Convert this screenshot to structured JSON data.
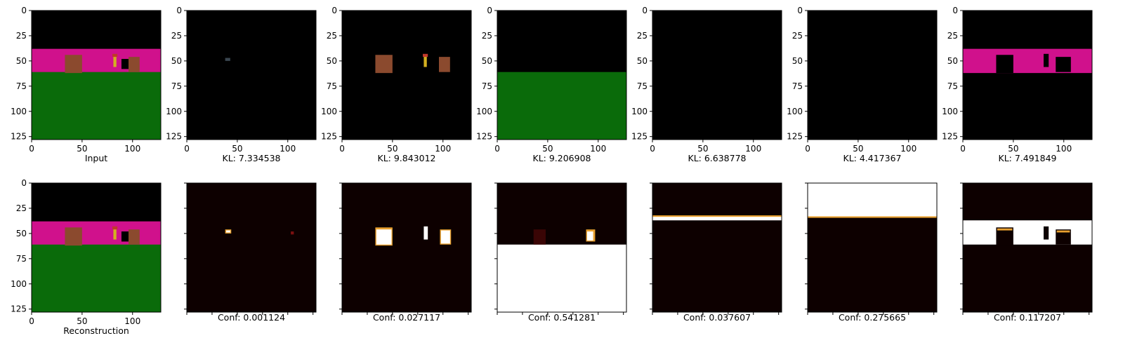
{
  "figure": {
    "rows": [
      {
        "panels": [
          {
            "name": "input",
            "caption": "Input",
            "scene": "full"
          },
          {
            "name": "slot-1",
            "caption": "KL: 7.334538",
            "scene": "slot1"
          },
          {
            "name": "slot-2",
            "caption": "KL: 9.843012",
            "scene": "slot2"
          },
          {
            "name": "slot-3",
            "caption": "KL: 9.206908",
            "scene": "slot3"
          },
          {
            "name": "slot-4",
            "caption": "KL: 6.638778",
            "scene": "slot4"
          },
          {
            "name": "slot-5",
            "caption": "KL: 4.417367",
            "scene": "slot5"
          },
          {
            "name": "slot-6",
            "caption": "KL: 7.491849",
            "scene": "slot6"
          }
        ]
      },
      {
        "panels": [
          {
            "name": "reconstruction",
            "caption": "Reconstruction",
            "scene": "full"
          },
          {
            "name": "mask-1",
            "caption": "Conf: 0.001124",
            "scene": "mask1"
          },
          {
            "name": "mask-2",
            "caption": "Conf: 0.027117",
            "scene": "mask2"
          },
          {
            "name": "mask-3",
            "caption": "Conf: 0.541281",
            "scene": "mask3"
          },
          {
            "name": "mask-4",
            "caption": "Conf: 0.037607",
            "scene": "mask4"
          },
          {
            "name": "mask-5",
            "caption": "Conf: 0.275665",
            "scene": "mask5"
          },
          {
            "name": "mask-6",
            "caption": "Conf: 0.117207",
            "scene": "mask6"
          }
        ]
      }
    ],
    "x_ticks": [
      0,
      50,
      100
    ],
    "y_ticks": [
      0,
      25,
      50,
      75,
      100,
      125
    ],
    "axis_range": [
      0,
      128
    ],
    "colors": {
      "sky": "#000000",
      "wall": "#d0118c",
      "floor": "#0a6b0a",
      "object": "#8b4a2e",
      "key": "#d4b020",
      "heat_bg": "#0d0000",
      "heat_hot": "#ffffff",
      "heat_mid": "#e8a030"
    }
  }
}
